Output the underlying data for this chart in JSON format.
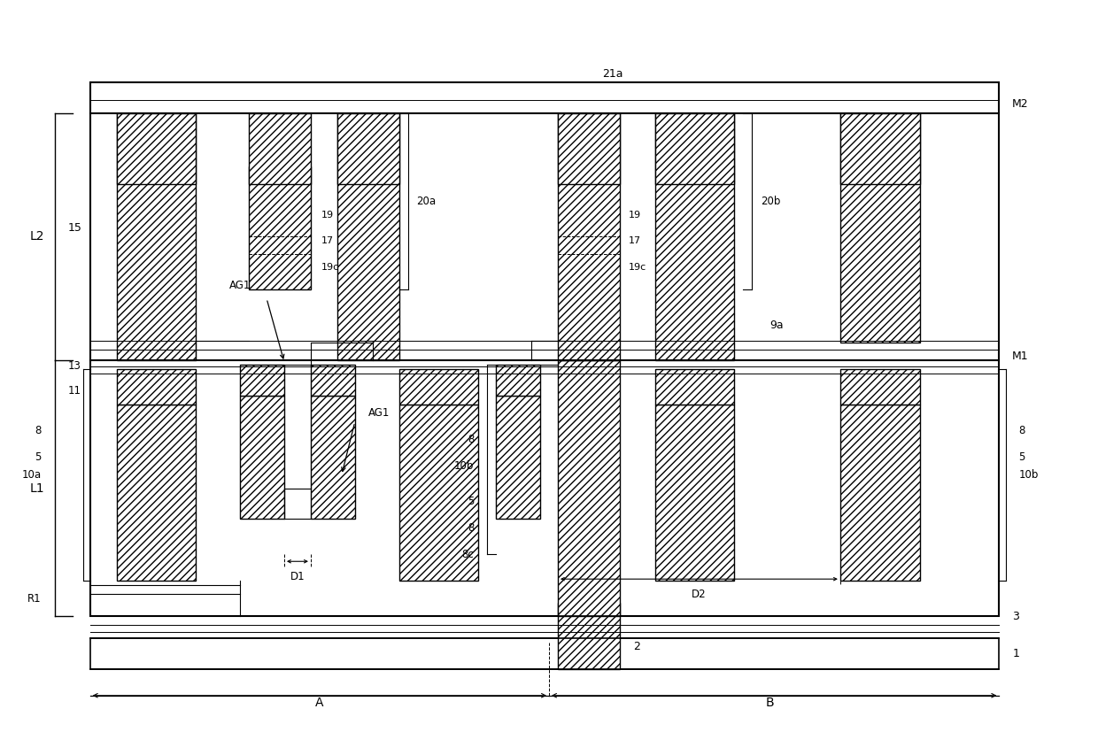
{
  "bg": "#ffffff",
  "lc": "#000000",
  "fw": 12.4,
  "fh": 8.27,
  "dpi": 100,
  "xlim": [
    0,
    124
  ],
  "ylim": [
    0,
    82.7
  ],
  "hatch": "////"
}
